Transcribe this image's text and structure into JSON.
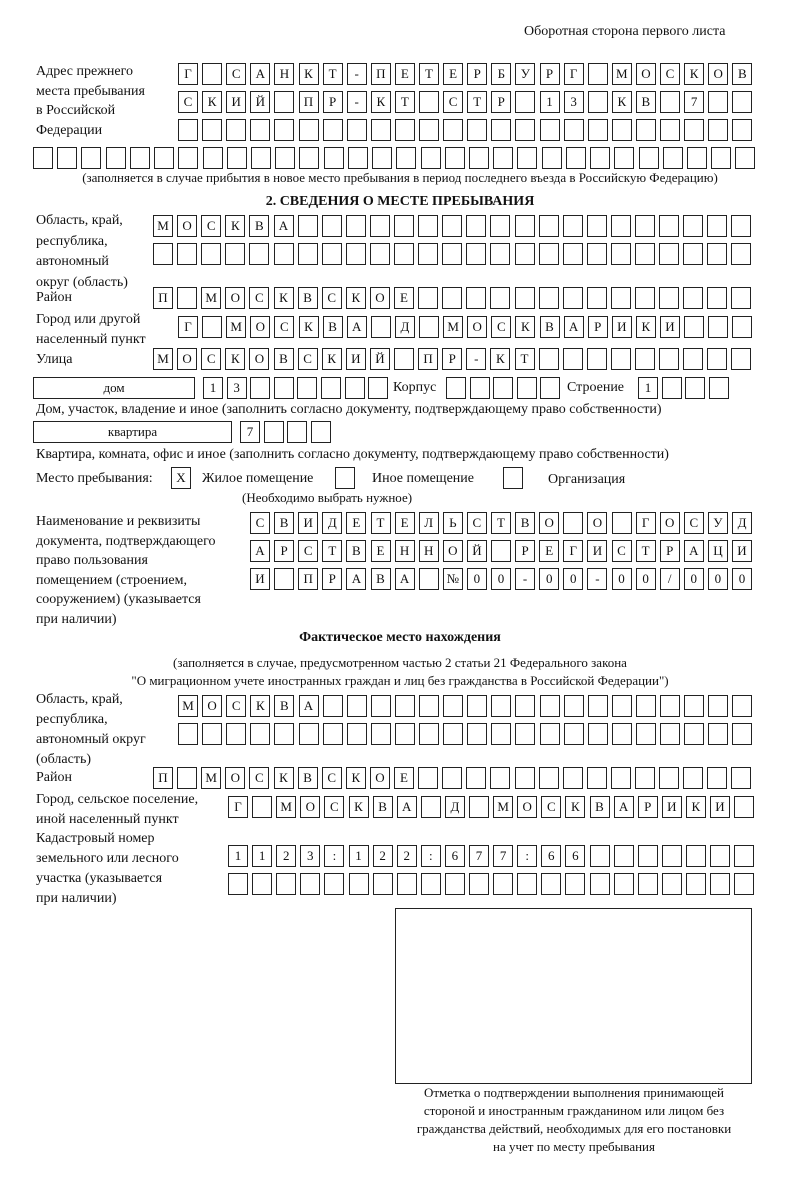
{
  "header": "Оборотная сторона первого листа",
  "prev_address": {
    "label": [
      "Адрес прежнего",
      "места пребывания",
      "в Российской",
      "Федерации"
    ],
    "rows": [
      [
        "Г",
        "",
        "С",
        "А",
        "Н",
        "К",
        "Т",
        "-",
        "П",
        "Е",
        "Т",
        "Е",
        "Р",
        "Б",
        "У",
        "Р",
        "Г",
        "",
        "М",
        "О",
        "С",
        "К",
        "О",
        "В"
      ],
      [
        "С",
        "К",
        "И",
        "Й",
        "",
        "П",
        "Р",
        "-",
        "К",
        "Т",
        "",
        "С",
        "Т",
        "Р",
        "",
        "1",
        "3",
        "",
        "К",
        "В",
        "",
        "7",
        "",
        ""
      ],
      [
        "",
        "",
        "",
        "",
        "",
        "",
        "",
        "",
        "",
        "",
        "",
        "",
        "",
        "",
        "",
        "",
        "",
        "",
        "",
        "",
        "",
        "",
        "",
        ""
      ],
      [
        "",
        "",
        "",
        "",
        "",
        "",
        "",
        "",
        "",
        "",
        "",
        "",
        "",
        "",
        "",
        "",
        "",
        "",
        "",
        "",
        "",
        "",
        "",
        "",
        "",
        "",
        "",
        "",
        "",
        ""
      ]
    ],
    "note": "(заполняется в случае прибытия в новое место пребывания в период последнего въезда в Российскую Федерацию)"
  },
  "section2": {
    "title": "2. СВЕДЕНИЯ О МЕСТЕ ПРЕБЫВАНИЯ",
    "region_label": [
      "Область, край,",
      "республика,",
      "автономный",
      "округ (область)"
    ],
    "region_rows": [
      [
        "М",
        "О",
        "С",
        "К",
        "В",
        "А",
        "",
        "",
        "",
        "",
        "",
        "",
        "",
        "",
        "",
        "",
        "",
        "",
        "",
        "",
        "",
        "",
        "",
        "",
        ""
      ],
      [
        "",
        "",
        "",
        "",
        "",
        "",
        "",
        "",
        "",
        "",
        "",
        "",
        "",
        "",
        "",
        "",
        "",
        "",
        "",
        "",
        "",
        "",
        "",
        "",
        ""
      ]
    ],
    "district_label": "Район",
    "district": [
      "П",
      "",
      "М",
      "О",
      "С",
      "К",
      "В",
      "С",
      "К",
      "О",
      "Е",
      "",
      "",
      "",
      "",
      "",
      "",
      "",
      "",
      "",
      "",
      "",
      "",
      "",
      ""
    ],
    "city_label": [
      "Город или другой",
      "населенный пункт"
    ],
    "city": [
      "Г",
      "",
      "М",
      "О",
      "С",
      "К",
      "В",
      "А",
      "",
      "Д",
      "",
      "М",
      "О",
      "С",
      "К",
      "В",
      "А",
      "Р",
      "И",
      "К",
      "И",
      "",
      "",
      ""
    ],
    "street_label": "Улица",
    "street": [
      "М",
      "О",
      "С",
      "К",
      "О",
      "В",
      "С",
      "К",
      "И",
      "Й",
      "",
      "П",
      "Р",
      "-",
      "К",
      "Т",
      "",
      "",
      "",
      "",
      "",
      "",
      "",
      "",
      ""
    ],
    "house_type": "дом",
    "house": [
      "1",
      "3",
      "",
      "",
      "",
      "",
      "",
      ""
    ],
    "korpus_label": "Корпус",
    "korpus": [
      "",
      "",
      "",
      "",
      ""
    ],
    "building_label": "Строение",
    "building": [
      "1",
      "",
      "",
      ""
    ],
    "house_note": "Дом, участок, владение и иное (заполнить согласно документу, подтверждающему право собственности)",
    "apt_type": "квартира",
    "apt": [
      "7",
      "",
      "",
      ""
    ],
    "apt_note": "Квартира, комната, офис и иное (заполнить согласно документу, подтверждающему право собственности)",
    "stay_label": "Место пребывания:",
    "stay_options": [
      {
        "label": "Жилое помещение",
        "mark": "X"
      },
      {
        "label": "Иное помещение",
        "mark": ""
      },
      {
        "label": "Организация",
        "mark": ""
      }
    ],
    "stay_note": "(Необходимо выбрать нужное)",
    "doc_label": [
      "Наименование и реквизиты",
      "документа, подтверждающего",
      "право пользования",
      "помещением (строением,",
      "сооружением) (указывается",
      "при наличии)"
    ],
    "doc_rows": [
      [
        "С",
        "В",
        "И",
        "Д",
        "Е",
        "Т",
        "Е",
        "Л",
        "Ь",
        "С",
        "Т",
        "В",
        "О",
        "",
        "О",
        "",
        "Г",
        "О",
        "С",
        "У",
        "Д"
      ],
      [
        "А",
        "Р",
        "С",
        "Т",
        "В",
        "Е",
        "Н",
        "Н",
        "О",
        "Й",
        "",
        "Р",
        "Е",
        "Г",
        "И",
        "С",
        "Т",
        "Р",
        "А",
        "Ц",
        "И"
      ],
      [
        "И",
        "",
        "П",
        "Р",
        "А",
        "В",
        "А",
        "",
        "№",
        "0",
        "0",
        "-",
        "0",
        "0",
        "-",
        "0",
        "0",
        "/",
        "0",
        "0",
        "0"
      ]
    ]
  },
  "actual": {
    "title": "Фактическое место нахождения",
    "note": [
      "(заполняется в случае, предусмотренном частью 2 статьи 21 Федерального закона",
      "\"О миграционном учете иностранных граждан и лиц без гражданства в Российской Федерации\")"
    ],
    "region_label": [
      "Область, край,",
      "республика,",
      "автономный округ",
      "(область)"
    ],
    "region_rows": [
      [
        "М",
        "О",
        "С",
        "К",
        "В",
        "А",
        "",
        "",
        "",
        "",
        "",
        "",
        "",
        "",
        "",
        "",
        "",
        "",
        "",
        "",
        "",
        "",
        "",
        ""
      ],
      [
        "",
        "",
        "",
        "",
        "",
        "",
        "",
        "",
        "",
        "",
        "",
        "",
        "",
        "",
        "",
        "",
        "",
        "",
        "",
        "",
        "",
        "",
        "",
        ""
      ]
    ],
    "district_label": "Район",
    "district": [
      "П",
      "",
      "М",
      "О",
      "С",
      "К",
      "В",
      "С",
      "К",
      "О",
      "Е",
      "",
      "",
      "",
      "",
      "",
      "",
      "",
      "",
      "",
      "",
      "",
      "",
      "",
      ""
    ],
    "city_label": [
      "Город, сельское поселение,",
      "иной населенный пункт"
    ],
    "city": [
      "Г",
      "",
      "М",
      "О",
      "С",
      "К",
      "В",
      "А",
      "",
      "Д",
      "",
      "М",
      "О",
      "С",
      "К",
      "В",
      "А",
      "Р",
      "И",
      "К",
      "И",
      ""
    ],
    "cadastre_label": [
      "Кадастровый номер",
      "земельного или лесного",
      "участка (указывается",
      "при наличии)"
    ],
    "cadastre_rows": [
      [
        "1",
        "1",
        "2",
        "3",
        ":",
        "1",
        "2",
        "2",
        ":",
        "6",
        "7",
        "7",
        ":",
        "6",
        "6",
        "",
        "",
        "",
        "",
        "",
        "",
        ""
      ],
      [
        "",
        "",
        "",
        "",
        "",
        "",
        "",
        "",
        "",
        "",
        "",
        "",
        "",
        "",
        "",
        "",
        "",
        "",
        "",
        "",
        "",
        ""
      ]
    ]
  },
  "stamp_caption": [
    "Отметка о подтверждении выполнения принимающей",
    "стороной и иностранным гражданином или лицом без",
    "гражданства действий, необходимых для его постановки",
    "на учет по месту пребывания"
  ]
}
